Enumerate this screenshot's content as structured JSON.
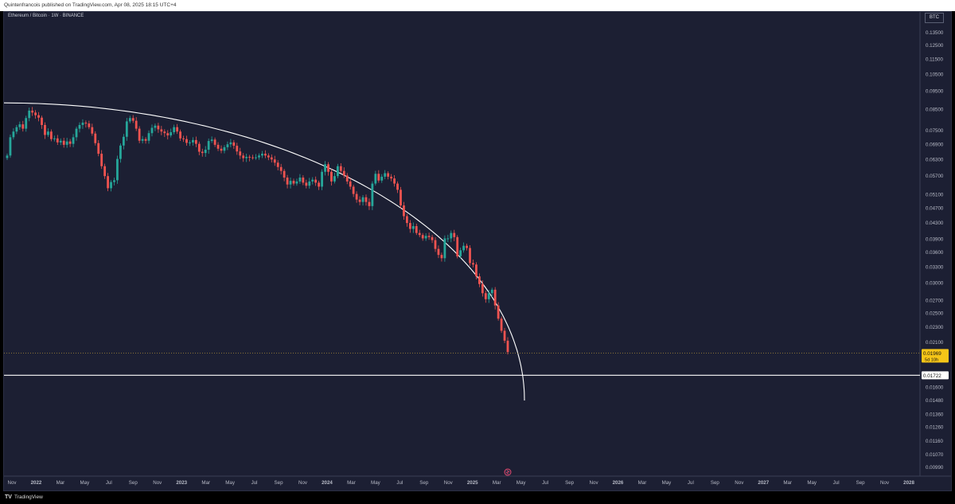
{
  "header": {
    "publish_info": "Quintenfrancois published on TradingView.com, Apr 08, 2025 18:15 UTC+4"
  },
  "legend": {
    "title": "Ethereum / Bitcoin · 1W · BINANCE"
  },
  "price_axis": {
    "currency": "BTC"
  },
  "footer": {
    "brand": "TradingView",
    "logo": "TV"
  },
  "colors": {
    "background": "#1c1f33",
    "up": "#26a69a",
    "down": "#ef5350",
    "price_label": "#f5c518",
    "line": "#ffffff"
  },
  "chart_data": {
    "type": "candlestick",
    "title": "Ethereum / Bitcoin · 1W · BINANCE",
    "y_unit": "BTC",
    "x_range": [
      "2021-11",
      "2028-01"
    ],
    "y_ticks": [
      0.135,
      0.125,
      0.115,
      0.105,
      0.095,
      0.085,
      0.075,
      0.069,
      0.063,
      0.057,
      0.051,
      0.047,
      0.043,
      0.039,
      0.036,
      0.033,
      0.03,
      0.027,
      0.025,
      0.023,
      0.021,
      0.016,
      0.0148,
      0.0136,
      0.0126,
      0.0116,
      0.0107,
      0.0099
    ],
    "y_tick_labels": [
      "0.13500",
      "0.12500",
      "0.11500",
      "0.10500",
      "0.09500",
      "0.08500",
      "0.07500",
      "0.06900",
      "0.06300",
      "0.05700",
      "0.05100",
      "0.04700",
      "0.04300",
      "0.03900",
      "0.03600",
      "0.03300",
      "0.03000",
      "0.02700",
      "0.02500",
      "0.02300",
      "0.02100",
      "0.01600",
      "0.01480",
      "0.01360",
      "0.01260",
      "0.01160",
      "0.01070",
      "0.00990"
    ],
    "x_tick_labels": [
      "Nov",
      "2022",
      "Mar",
      "May",
      "Jul",
      "Sep",
      "Nov",
      "2023",
      "Mar",
      "May",
      "Jul",
      "Sep",
      "Nov",
      "2024",
      "Mar",
      "May",
      "Jul",
      "Sep",
      "Nov",
      "2025",
      "Mar",
      "May",
      "Jul",
      "Sep",
      "Nov",
      "2026",
      "Mar",
      "May",
      "Jul",
      "Sep",
      "Nov",
      "2027",
      "Mar",
      "May",
      "Jul",
      "Sep",
      "Nov",
      "2028"
    ],
    "current_price": {
      "value": 0.01969,
      "label": "0.01969",
      "countdown": "5d 10h"
    },
    "horizontal_line": {
      "value": 0.01722,
      "label": "0.01722"
    },
    "arc": {
      "note": "white curved line from Nov 2021 high to ~May 2025"
    },
    "series": [
      {
        "name": "ETHBTC",
        "closes": [
          0.0645,
          0.072,
          0.0745,
          0.0765,
          0.0778,
          0.0758,
          0.0808,
          0.0845,
          0.0835,
          0.0822,
          0.081,
          0.0775,
          0.073,
          0.0745,
          0.0712,
          0.0715,
          0.0698,
          0.0705,
          0.0688,
          0.0702,
          0.0692,
          0.072,
          0.0758,
          0.0775,
          0.0786,
          0.0782,
          0.0765,
          0.0736,
          0.0695,
          0.0652,
          0.0605,
          0.057,
          0.053,
          0.055,
          0.0556,
          0.0632,
          0.0685,
          0.0722,
          0.0792,
          0.0808,
          0.0795,
          0.0758,
          0.0705,
          0.0712,
          0.0705,
          0.0738,
          0.0762,
          0.0772,
          0.0755,
          0.0745,
          0.0738,
          0.0728,
          0.0742,
          0.0765,
          0.0745,
          0.0715,
          0.0712,
          0.0696,
          0.0698,
          0.0708,
          0.0692,
          0.066,
          0.0655,
          0.0668,
          0.0704,
          0.071,
          0.0688,
          0.0672,
          0.0664,
          0.0678,
          0.069,
          0.0698,
          0.0684,
          0.0661,
          0.0645,
          0.0635,
          0.064,
          0.0638,
          0.0637,
          0.0638,
          0.0645,
          0.0652,
          0.0645,
          0.0638,
          0.063,
          0.0618,
          0.0602,
          0.0588,
          0.0565,
          0.0542,
          0.0554,
          0.0545,
          0.0552,
          0.0565,
          0.0548,
          0.0538,
          0.0552,
          0.0558,
          0.0548,
          0.0535,
          0.0585,
          0.0612,
          0.0585,
          0.0552,
          0.057,
          0.0605,
          0.0588,
          0.0572,
          0.0552,
          0.0535,
          0.0512,
          0.0495,
          0.0488,
          0.0502,
          0.0488,
          0.0476,
          0.0545,
          0.0578,
          0.0555,
          0.0568,
          0.058,
          0.0568,
          0.0562,
          0.0545,
          0.0525,
          0.0478,
          0.0448,
          0.043,
          0.0415,
          0.0422,
          0.0405,
          0.04,
          0.0392,
          0.0398,
          0.0395,
          0.0388,
          0.0368,
          0.0355,
          0.0348,
          0.0392,
          0.0392,
          0.0405,
          0.0395,
          0.0352,
          0.0365,
          0.0375,
          0.037,
          0.0338,
          0.0335,
          0.0312,
          0.0298,
          0.0282,
          0.0272,
          0.0282,
          0.0288,
          0.0262,
          0.0242,
          0.0225,
          0.0212,
          0.0198
        ]
      }
    ]
  }
}
